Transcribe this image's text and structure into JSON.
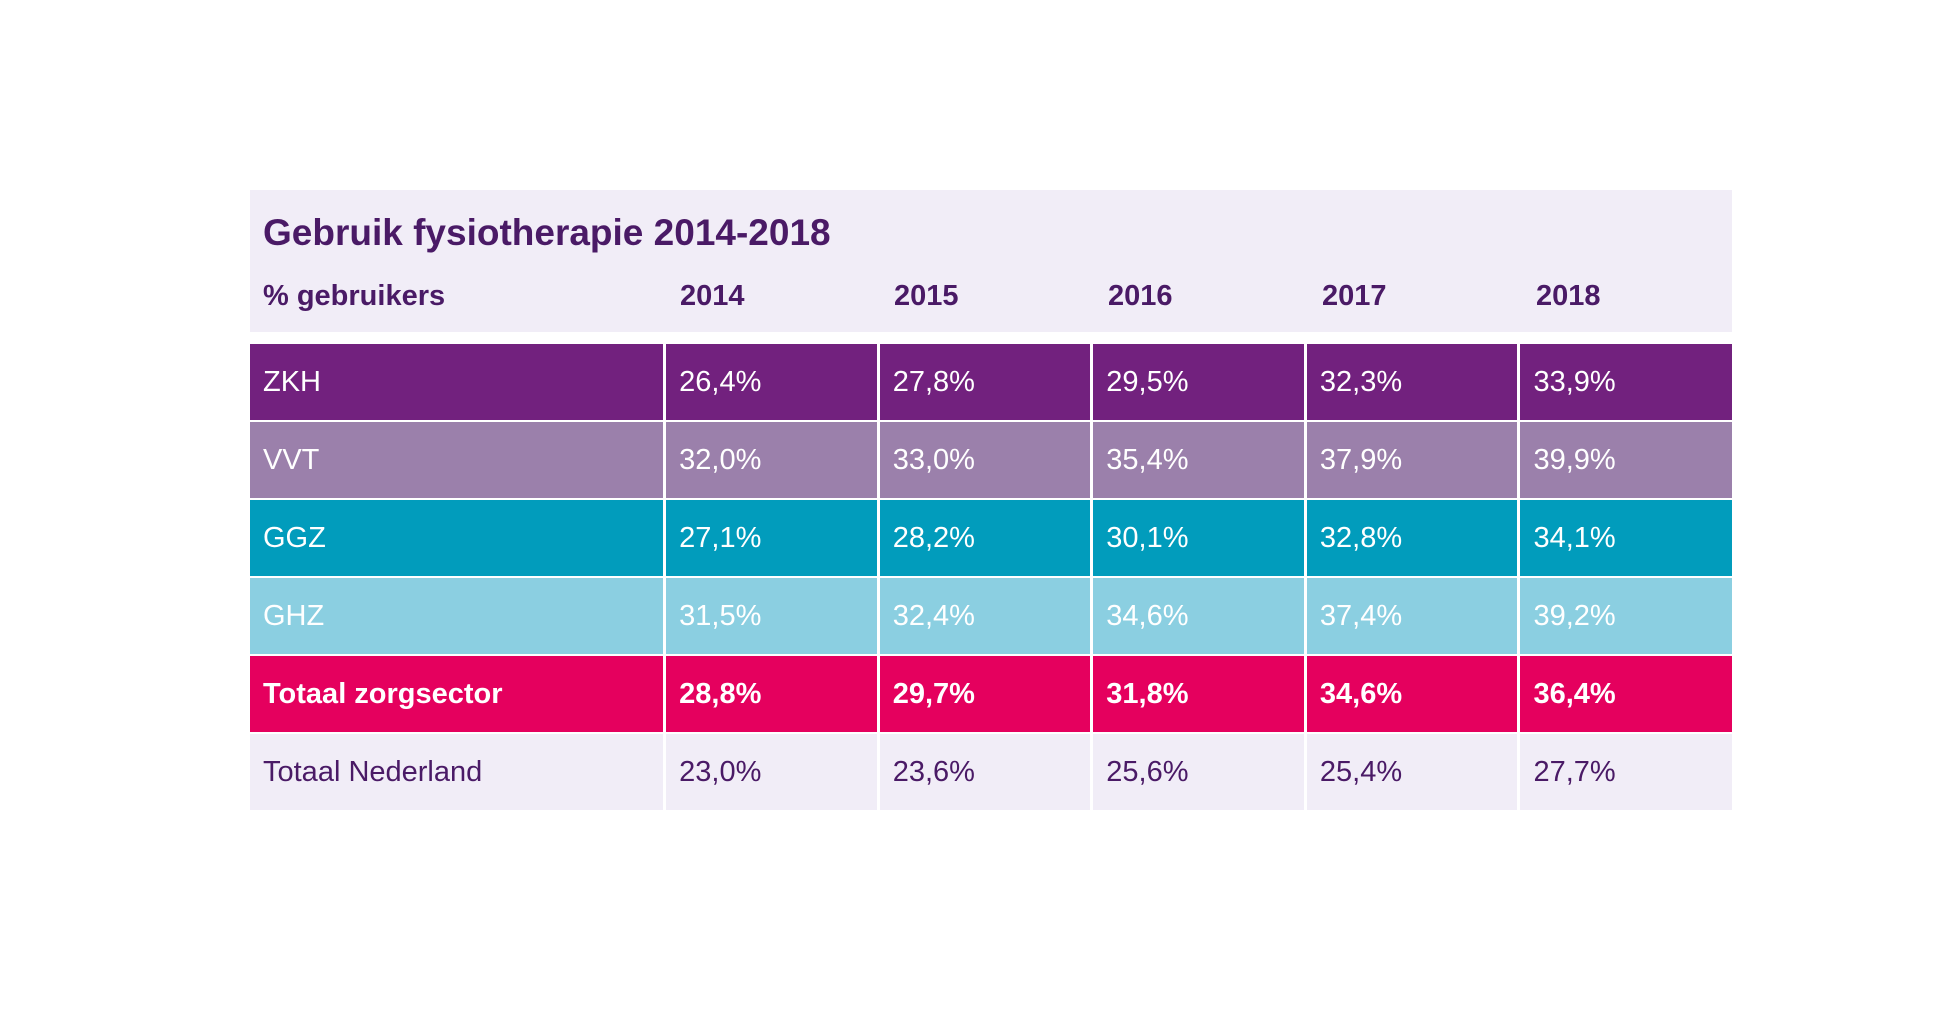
{
  "chart_data": {
    "type": "table",
    "title": "Gebruik fysiotherapie 2014-2018",
    "row_header": "% gebruikers",
    "columns": [
      "2014",
      "2015",
      "2016",
      "2017",
      "2018"
    ],
    "rows": [
      {
        "label": "ZKH",
        "values": [
          "26,4%",
          "27,8%",
          "29,5%",
          "32,3%",
          "33,9%"
        ],
        "bg": "#72217e",
        "fg": "#ffffff",
        "bold": false
      },
      {
        "label": "VVT",
        "values": [
          "32,0%",
          "33,0%",
          "35,4%",
          "37,9%",
          "39,9%"
        ],
        "bg": "#9b80ab",
        "fg": "#ffffff",
        "bold": false
      },
      {
        "label": "GGZ",
        "values": [
          "27,1%",
          "28,2%",
          "30,1%",
          "32,8%",
          "34,1%"
        ],
        "bg": "#019cbc",
        "fg": "#ffffff",
        "bold": false
      },
      {
        "label": "GHZ",
        "values": [
          "31,5%",
          "32,4%",
          "34,6%",
          "37,4%",
          "39,2%"
        ],
        "bg": "#8bcfe1",
        "fg": "#ffffff",
        "bold": false
      },
      {
        "label": "Totaal zorgsector",
        "values": [
          "28,8%",
          "29,7%",
          "31,8%",
          "34,6%",
          "36,4%"
        ],
        "bg": "#e5005e",
        "fg": "#ffffff",
        "bold": true
      },
      {
        "label": "Totaal Nederland",
        "values": [
          "23,0%",
          "23,6%",
          "25,6%",
          "25,4%",
          "27,7%"
        ],
        "bg": "#f1edf7",
        "fg": "#4a1a66",
        "bold": false
      }
    ]
  }
}
